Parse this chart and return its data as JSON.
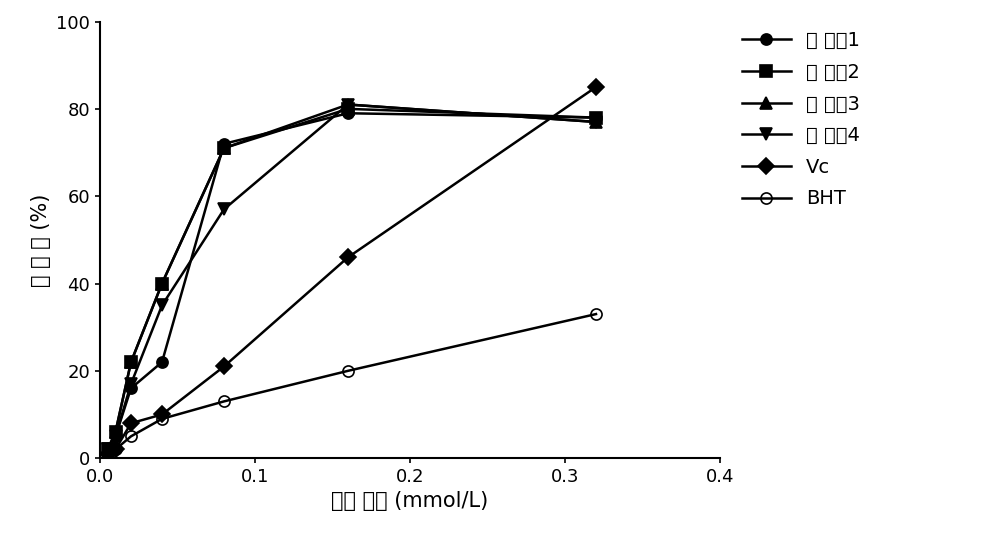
{
  "series": [
    {
      "label": "化 合癲1",
      "marker": "o",
      "fillstyle": "full",
      "x": [
        0.005,
        0.01,
        0.02,
        0.04,
        0.08,
        0.16,
        0.32
      ],
      "y": [
        2,
        5,
        16,
        22,
        72,
        79,
        78
      ]
    },
    {
      "label": "化 合癲2",
      "marker": "s",
      "fillstyle": "full",
      "x": [
        0.005,
        0.01,
        0.02,
        0.04,
        0.08,
        0.16,
        0.32
      ],
      "y": [
        2,
        6,
        22,
        40,
        71,
        80,
        78
      ]
    },
    {
      "label": "化 合癲3",
      "marker": "^",
      "fillstyle": "full",
      "x": [
        0.005,
        0.01,
        0.02,
        0.04,
        0.08,
        0.16,
        0.32
      ],
      "y": [
        2,
        6,
        22,
        40,
        71,
        81,
        77
      ]
    },
    {
      "label": "化 合癲4",
      "marker": "v",
      "fillstyle": "full",
      "x": [
        0.005,
        0.01,
        0.02,
        0.04,
        0.08,
        0.16,
        0.32
      ],
      "y": [
        2,
        5,
        17,
        35,
        57,
        81,
        77
      ]
    },
    {
      "label": "Vc",
      "marker": "D",
      "fillstyle": "full",
      "x": [
        0.005,
        0.01,
        0.02,
        0.04,
        0.08,
        0.16,
        0.32
      ],
      "y": [
        1,
        2,
        8,
        10,
        21,
        46,
        85
      ]
    },
    {
      "label": "BHT",
      "marker": "o",
      "fillstyle": "none",
      "x": [
        0.005,
        0.01,
        0.02,
        0.04,
        0.08,
        0.16,
        0.32
      ],
      "y": [
        1,
        2,
        5,
        9,
        13,
        20,
        33
      ]
    }
  ],
  "xlim": [
    0,
    0.4
  ],
  "ylim": [
    0,
    100
  ],
  "xticks": [
    0.0,
    0.1,
    0.2,
    0.3,
    0.4
  ],
  "yticks": [
    0,
    20,
    40,
    60,
    80,
    100
  ],
  "xlabel": "摩尔 浓度 (mmol/L)",
  "ylabel": "抑 制 率 (%)",
  "color": "#000000",
  "linewidth": 1.8,
  "markersize": 8,
  "legend_fontsize": 14,
  "axis_fontsize": 15,
  "tick_fontsize": 13,
  "background_color": "#ffffff"
}
